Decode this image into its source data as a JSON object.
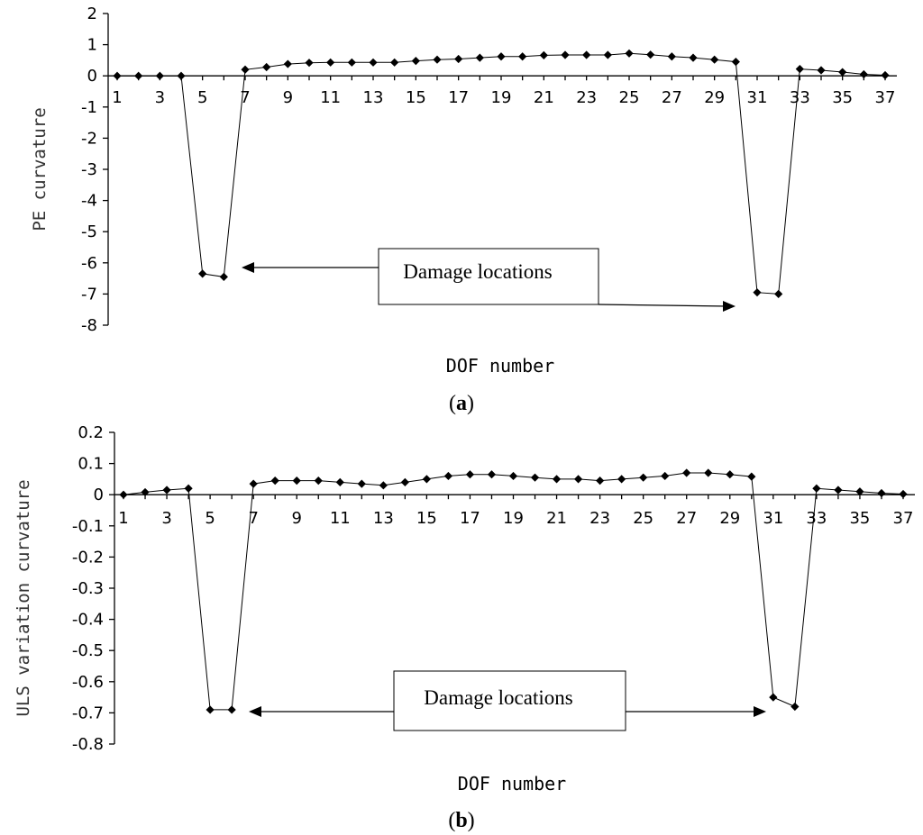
{
  "chart_data": [
    {
      "type": "line",
      "panel_label": "a",
      "ylabel": "PE curvature",
      "xlabel": "DOF number",
      "ylim": [
        -8,
        2
      ],
      "yticks": [
        "2",
        "1",
        "0",
        "-1",
        "-2",
        "-3",
        "-4",
        "-5",
        "-6",
        "-7",
        "-8"
      ],
      "xtick_labels": [
        "1",
        "3",
        "5",
        "7",
        "9",
        "11",
        "13",
        "15",
        "17",
        "19",
        "21",
        "23",
        "25",
        "27",
        "29",
        "31",
        "33",
        "35",
        "37"
      ],
      "x": [
        1,
        2,
        3,
        4,
        5,
        6,
        7,
        8,
        9,
        10,
        11,
        12,
        13,
        14,
        15,
        16,
        17,
        18,
        19,
        20,
        21,
        22,
        23,
        24,
        25,
        26,
        27,
        28,
        29,
        30,
        31,
        32,
        33,
        34,
        35,
        36,
        37
      ],
      "series": [
        {
          "values": [
            0,
            0,
            0,
            0,
            -6.35,
            -6.45,
            0.2,
            0.28,
            0.38,
            0.42,
            0.43,
            0.43,
            0.43,
            0.43,
            0.48,
            0.52,
            0.54,
            0.58,
            0.62,
            0.62,
            0.66,
            0.67,
            0.67,
            0.67,
            0.72,
            0.68,
            0.62,
            0.58,
            0.52,
            0.45,
            -6.95,
            -7.0,
            0.22,
            0.18,
            0.12,
            0.05,
            0.02
          ]
        }
      ],
      "annotation": {
        "text": "Damage locations",
        "arrow_targets": [
          6,
          30
        ]
      }
    },
    {
      "type": "line",
      "panel_label": "b",
      "ylabel": "ULS variation curvature",
      "xlabel": "DOF number",
      "ylim": [
        -0.8,
        0.2
      ],
      "yticks": [
        "0.2",
        "0.1",
        "0",
        "-0.1",
        "-0.2",
        "-0.3",
        "-0.4",
        "-0.5",
        "-0.6",
        "-0.7",
        "-0.8"
      ],
      "xtick_labels": [
        "1",
        "3",
        "5",
        "7",
        "9",
        "11",
        "13",
        "15",
        "17",
        "19",
        "21",
        "23",
        "25",
        "27",
        "29",
        "31",
        "33",
        "35",
        "37"
      ],
      "x": [
        1,
        2,
        3,
        4,
        5,
        6,
        7,
        8,
        9,
        10,
        11,
        12,
        13,
        14,
        15,
        16,
        17,
        18,
        19,
        20,
        21,
        22,
        23,
        24,
        25,
        26,
        27,
        28,
        29,
        30,
        31,
        32,
        33,
        34,
        35,
        36,
        37
      ],
      "series": [
        {
          "values": [
            0,
            0.008,
            0.015,
            0.02,
            -0.69,
            -0.69,
            0.035,
            0.045,
            0.045,
            0.045,
            0.04,
            0.035,
            0.03,
            0.04,
            0.05,
            0.06,
            0.065,
            0.065,
            0.06,
            0.055,
            0.05,
            0.05,
            0.045,
            0.05,
            0.055,
            0.06,
            0.07,
            0.07,
            0.065,
            0.058,
            -0.65,
            -0.68,
            0.02,
            0.015,
            0.01,
            0.005,
            0.002
          ]
        }
      ],
      "annotation": {
        "text": "Damage locations",
        "arrow_targets": [
          7,
          31
        ]
      }
    }
  ]
}
